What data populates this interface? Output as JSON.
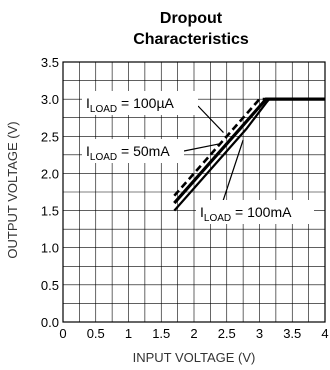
{
  "chart_data": {
    "type": "line",
    "title_line1": "Dropout",
    "title_line2": "Characteristics",
    "xlabel": "INPUT  VOLTAGE (V)",
    "ylabel": "OUTPUT VOLTAGE (V)",
    "xlim": [
      0,
      4
    ],
    "ylim": [
      0,
      3.5
    ],
    "x_ticks": [
      "0",
      "0.5",
      "1",
      "1.5",
      "2",
      "2.5",
      "3",
      "3.5",
      "4"
    ],
    "y_ticks": [
      "0.0",
      "0.5",
      "1.0",
      "1.5",
      "2.0",
      "2.5",
      "3.0",
      "3.5"
    ],
    "grid": true,
    "series": [
      {
        "name": "I_LOAD = 100µA",
        "style": "dashed",
        "points": [
          [
            1.7,
            1.7
          ],
          [
            2.6,
            2.6
          ],
          [
            3.0,
            3.0
          ],
          [
            4.0,
            3.0
          ]
        ]
      },
      {
        "name": "I_LOAD = 50mA",
        "style": "solid-bold",
        "points": [
          [
            1.7,
            1.6
          ],
          [
            2.7,
            2.6
          ],
          [
            3.05,
            2.95
          ],
          [
            3.1,
            3.0
          ],
          [
            4.0,
            3.0
          ]
        ]
      },
      {
        "name": "I_LOAD = 100mA",
        "style": "solid",
        "points": [
          [
            1.7,
            1.5
          ],
          [
            2.8,
            2.6
          ],
          [
            3.1,
            2.95
          ],
          [
            3.15,
            3.0
          ],
          [
            4.0,
            3.0
          ]
        ]
      }
    ],
    "annotations": [
      {
        "label_main": "I",
        "label_sub": "LOAD",
        "label_rest": " = 100µA"
      },
      {
        "label_main": "I",
        "label_sub": "LOAD",
        "label_rest": " = 50mA"
      },
      {
        "label_main": "I",
        "label_sub": "LOAD",
        "label_rest": " = 100mA"
      }
    ]
  }
}
